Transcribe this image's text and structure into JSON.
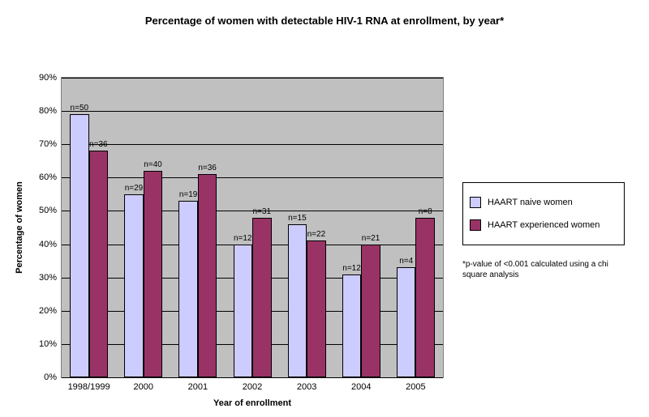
{
  "title": "Percentage of women with detectable HIV-1 RNA at enrollment, by year*",
  "chart": {
    "type": "bar",
    "categories": [
      "1998/1999",
      "2000",
      "2001",
      "2002",
      "2003",
      "2004",
      "2005"
    ],
    "series": [
      {
        "name": "HAART naive women",
        "color": "#ccccff",
        "values": [
          79,
          55,
          53,
          40,
          46,
          31,
          33
        ],
        "n": [
          50,
          29,
          19,
          12,
          15,
          12,
          4
        ]
      },
      {
        "name": "HAART experienced women",
        "color": "#993366",
        "values": [
          68,
          62,
          61,
          48,
          41,
          40,
          48
        ],
        "n": [
          36,
          40,
          36,
          31,
          22,
          21,
          8
        ]
      }
    ],
    "ylim": [
      0,
      90
    ],
    "ytick_step": 10,
    "ytick_suffix": "%",
    "grid_color": "#000000",
    "background_color": "#c0c0c0",
    "bar_border_color": "#000000",
    "ylabel": "Percentage of women",
    "xlabel": "Year of enrollment",
    "label_fontsize": 11,
    "title_fontsize": 13,
    "tick_fontsize": 11,
    "bar_label_fontsize": 10,
    "bar_group_width": 0.7
  },
  "footnote": "*p-value of <0.001 calculated using a chi square analysis"
}
